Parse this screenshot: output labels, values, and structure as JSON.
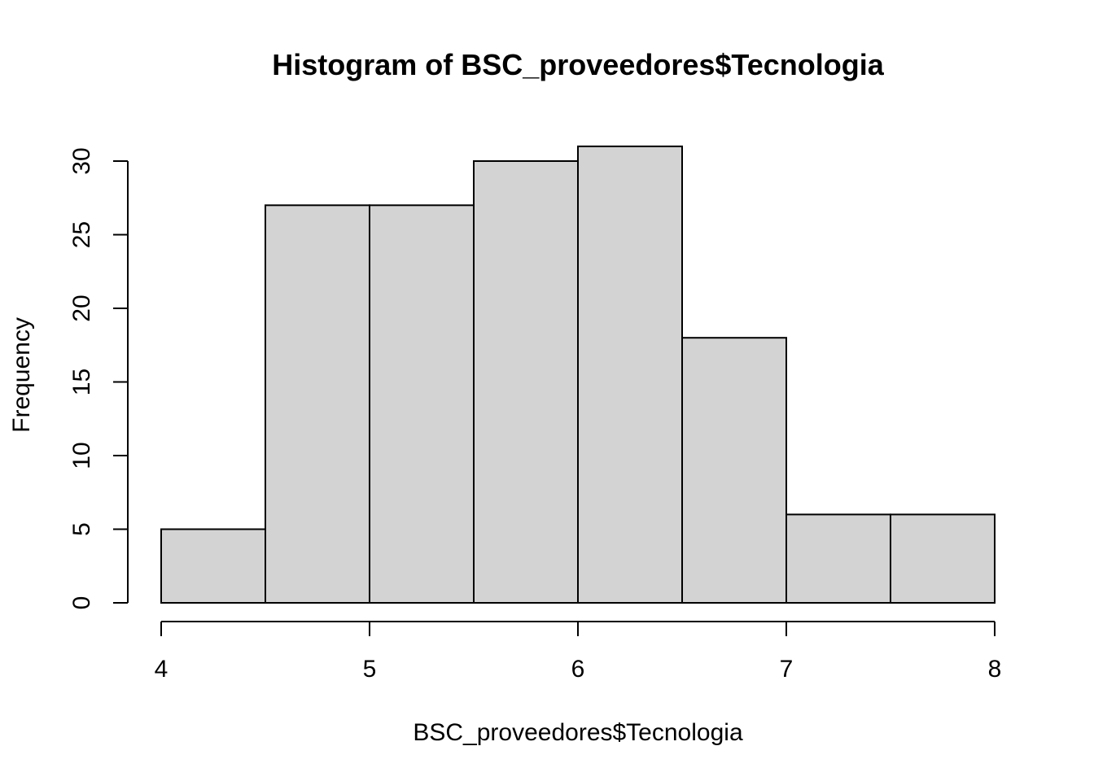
{
  "chart_data": {
    "type": "bar",
    "title": "Histogram of BSC_proveedores$Tecnologia",
    "xlabel": "BSC_proveedores$Tecnologia",
    "ylabel": "Frequency",
    "bins": [
      {
        "x0": 4.0,
        "x1": 4.5,
        "count": 5
      },
      {
        "x0": 4.5,
        "x1": 5.0,
        "count": 27
      },
      {
        "x0": 5.0,
        "x1": 5.5,
        "count": 27
      },
      {
        "x0": 5.5,
        "x1": 6.0,
        "count": 30
      },
      {
        "x0": 6.0,
        "x1": 6.5,
        "count": 31
      },
      {
        "x0": 6.5,
        "x1": 7.0,
        "count": 18
      },
      {
        "x0": 7.0,
        "x1": 7.5,
        "count": 6
      },
      {
        "x0": 7.5,
        "x1": 8.0,
        "count": 6
      }
    ],
    "xlim": [
      4,
      8
    ],
    "ylim": [
      0,
      30
    ],
    "xticks": [
      "4",
      "5",
      "6",
      "7",
      "8"
    ],
    "yticks": [
      "0",
      "5",
      "10",
      "15",
      "20",
      "25",
      "30"
    ],
    "bar_fill": "#d3d3d3",
    "bar_stroke": "#000000",
    "grid": false
  }
}
